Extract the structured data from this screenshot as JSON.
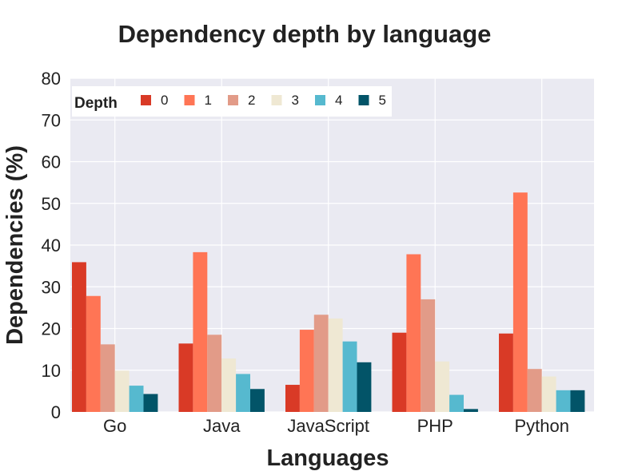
{
  "chart_data": {
    "type": "bar",
    "title": "Dependency depth by language",
    "xlabel": "Languages",
    "ylabel": "Dependencies (%)",
    "categories": [
      "Go",
      "Java",
      "JavaScript",
      "PHP",
      "Python"
    ],
    "ylim": [
      0,
      80
    ],
    "yticks": [
      "0",
      "10",
      "20",
      "30",
      "40",
      "50",
      "60",
      "70",
      "80"
    ],
    "grid": true,
    "legend": {
      "title": "Depth",
      "position": "top-left"
    },
    "series": [
      {
        "name": "0",
        "color": "#d93a26",
        "values": [
          35.9,
          16.4,
          6.5,
          19.0,
          18.8
        ]
      },
      {
        "name": "1",
        "color": "#ff7555",
        "values": [
          27.8,
          38.3,
          19.7,
          37.8,
          52.6
        ]
      },
      {
        "name": "2",
        "color": "#e29b88",
        "values": [
          16.2,
          18.5,
          23.3,
          27.0,
          10.3
        ]
      },
      {
        "name": "3",
        "color": "#efe8d3",
        "values": [
          9.9,
          12.8,
          22.4,
          12.1,
          8.5
        ]
      },
      {
        "name": "4",
        "color": "#56b9cf",
        "values": [
          6.3,
          9.1,
          16.9,
          4.1,
          5.2
        ]
      },
      {
        "name": "5",
        "color": "#025468",
        "values": [
          4.3,
          5.5,
          11.9,
          0.7,
          5.2
        ]
      }
    ]
  }
}
